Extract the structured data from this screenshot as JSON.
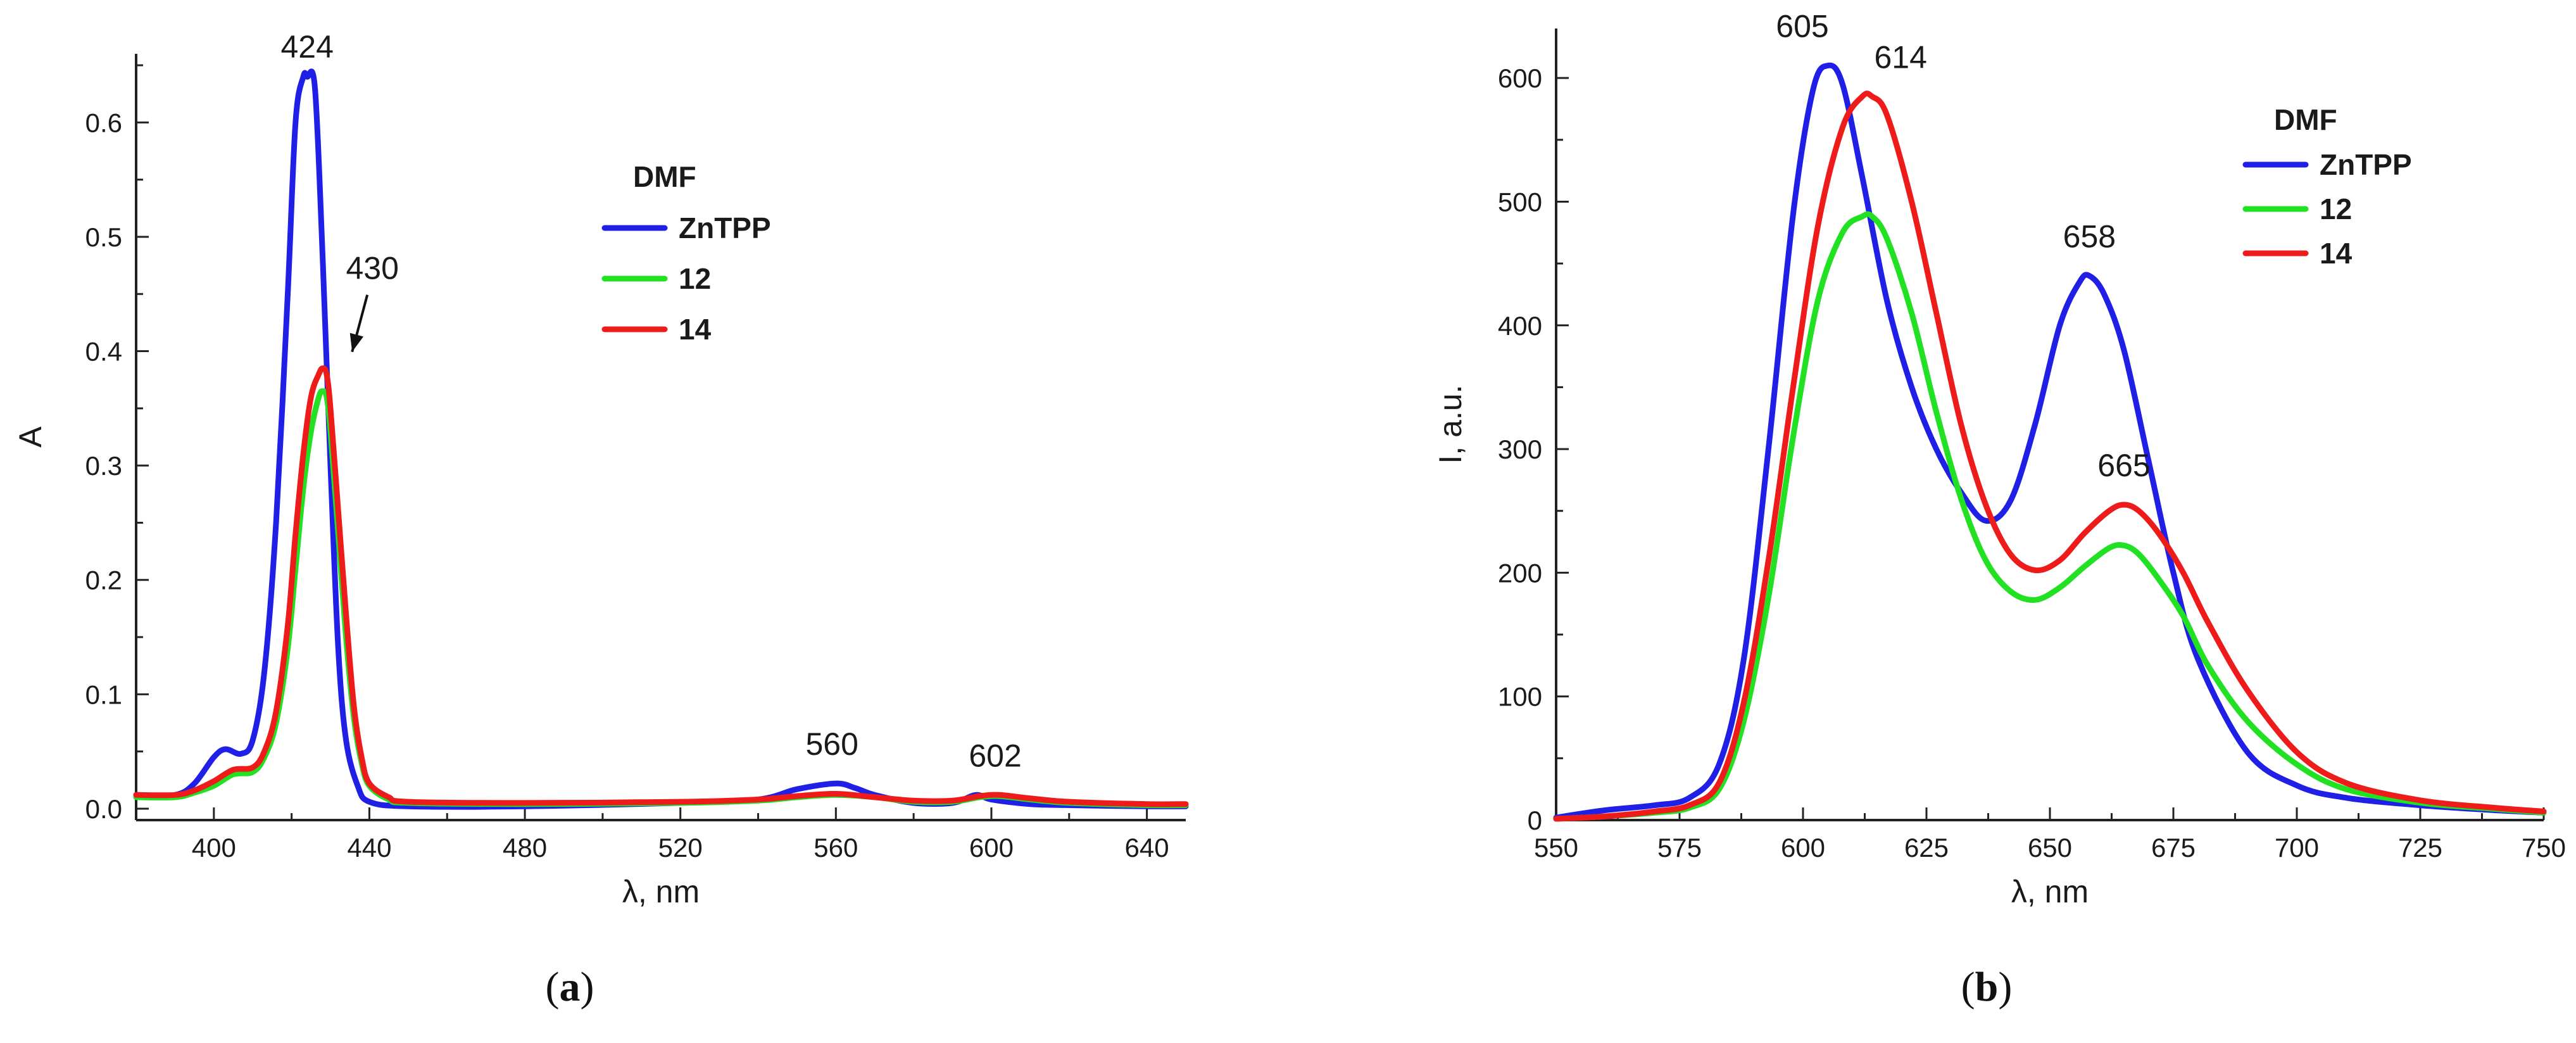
{
  "chart_data": [
    {
      "id": "a",
      "type": "line",
      "caption_paren_open": "(",
      "caption_letter": "a",
      "caption_paren_close": ")",
      "xlabel": "λ, nm",
      "ylabel": "A",
      "xlim": [
        380,
        650
      ],
      "ylim": [
        -0.01,
        0.66
      ],
      "xticks": [
        400,
        440,
        480,
        520,
        560,
        600,
        640
      ],
      "xtick_labels": [
        "400",
        "440",
        "480",
        "520",
        "560",
        "600",
        "640"
      ],
      "yticks": [
        0.0,
        0.1,
        0.2,
        0.3,
        0.4,
        0.5,
        0.6
      ],
      "ytick_labels": [
        "0.0",
        "0.1",
        "0.2",
        "0.3",
        "0.4",
        "0.5",
        "0.6"
      ],
      "legend": {
        "title": "DMF",
        "position": "center-right"
      },
      "series": [
        {
          "name": "ZnTPP",
          "color": "#1f1fe6",
          "x": [
            380,
            390,
            395,
            400,
            403,
            407,
            410,
            413,
            416,
            419,
            421,
            423,
            424,
            426,
            428,
            430,
            432,
            434,
            437,
            440,
            450,
            480,
            520,
            540,
            550,
            560,
            565,
            570,
            580,
            590,
            596,
            600,
            610,
            620,
            640,
            650
          ],
          "y": [
            0.012,
            0.012,
            0.022,
            0.045,
            0.052,
            0.048,
            0.06,
            0.12,
            0.25,
            0.45,
            0.6,
            0.64,
            0.64,
            0.63,
            0.48,
            0.3,
            0.14,
            0.06,
            0.02,
            0.006,
            0.002,
            0.002,
            0.005,
            0.008,
            0.017,
            0.022,
            0.018,
            0.012,
            0.005,
            0.005,
            0.012,
            0.008,
            0.004,
            0.003,
            0.002,
            0.002
          ]
        },
        {
          "name": "12",
          "color": "#22e022",
          "x": [
            380,
            390,
            395,
            400,
            405,
            410,
            413,
            416,
            419,
            421,
            423,
            425,
            427,
            428,
            429,
            430,
            432,
            434,
            436,
            438,
            440,
            445,
            450,
            480,
            520,
            540,
            550,
            560,
            570,
            580,
            590,
            597,
            602,
            610,
            620,
            640,
            650
          ],
          "y": [
            0.01,
            0.01,
            0.014,
            0.02,
            0.03,
            0.032,
            0.045,
            0.075,
            0.14,
            0.21,
            0.28,
            0.33,
            0.36,
            0.365,
            0.36,
            0.33,
            0.24,
            0.15,
            0.08,
            0.04,
            0.02,
            0.008,
            0.005,
            0.004,
            0.005,
            0.007,
            0.01,
            0.012,
            0.01,
            0.006,
            0.006,
            0.01,
            0.011,
            0.008,
            0.005,
            0.003,
            0.003
          ]
        },
        {
          "name": "14",
          "color": "#ee1b1b",
          "x": [
            380,
            390,
            395,
            400,
            405,
            410,
            413,
            416,
            419,
            421,
            423,
            425,
            427,
            428,
            429,
            430,
            432,
            434,
            436,
            438,
            440,
            445,
            450,
            480,
            520,
            540,
            550,
            560,
            570,
            580,
            590,
            597,
            602,
            610,
            620,
            640,
            650
          ],
          "y": [
            0.012,
            0.012,
            0.016,
            0.024,
            0.034,
            0.036,
            0.05,
            0.085,
            0.16,
            0.24,
            0.31,
            0.36,
            0.38,
            0.385,
            0.38,
            0.35,
            0.26,
            0.17,
            0.09,
            0.045,
            0.022,
            0.01,
            0.006,
            0.005,
            0.006,
            0.008,
            0.011,
            0.013,
            0.01,
            0.007,
            0.007,
            0.011,
            0.012,
            0.009,
            0.006,
            0.004,
            0.004
          ]
        }
      ],
      "annotations": [
        {
          "text": "424",
          "x": 424,
          "y": 0.64,
          "arrow": false
        },
        {
          "text": "430",
          "x": 431,
          "y": 0.38,
          "arrow": true
        },
        {
          "text": "560",
          "x": 559,
          "y": 0.022,
          "arrow": false
        },
        {
          "text": "602",
          "x": 601,
          "y": 0.012,
          "arrow": false
        }
      ]
    },
    {
      "id": "b",
      "type": "line",
      "caption_paren_open": "(",
      "caption_letter": "b",
      "caption_paren_close": ")",
      "xlabel": "λ, nm",
      "ylabel": "I, a.u.",
      "xlim": [
        550,
        750
      ],
      "ylim": [
        0,
        640
      ],
      "xticks": [
        550,
        575,
        600,
        625,
        650,
        675,
        700,
        725,
        750
      ],
      "xtick_labels": [
        "550",
        "575",
        "600",
        "625",
        "650",
        "675",
        "700",
        "725",
        "750"
      ],
      "yticks": [
        0,
        100,
        200,
        300,
        400,
        500,
        600
      ],
      "ytick_labels": [
        "0",
        "100",
        "200",
        "300",
        "400",
        "500",
        "600"
      ],
      "legend": {
        "title": "DMF",
        "position": "top-right"
      },
      "series": [
        {
          "name": "ZnTPP",
          "color": "#1f1fe6",
          "x": [
            550,
            560,
            570,
            577,
            583,
            588,
            593,
            598,
            602,
            605,
            608,
            612,
            617,
            622,
            627,
            632,
            637,
            642,
            647,
            652,
            656,
            658,
            661,
            665,
            670,
            675,
            680,
            690,
            700,
            710,
            725,
            740,
            750
          ],
          "y": [
            2,
            8,
            12,
            18,
            45,
            130,
            300,
            490,
            590,
            610,
            595,
            520,
            420,
            350,
            300,
            265,
            242,
            258,
            320,
            400,
            435,
            440,
            425,
            380,
            290,
            200,
            130,
            55,
            28,
            18,
            12,
            8,
            6
          ]
        },
        {
          "name": "12",
          "color": "#22e022",
          "x": [
            550,
            560,
            570,
            577,
            583,
            588,
            593,
            598,
            603,
            608,
            612,
            614,
            617,
            622,
            627,
            632,
            637,
            642,
            647,
            652,
            657,
            662,
            665,
            668,
            672,
            677,
            682,
            690,
            700,
            710,
            725,
            740,
            750
          ],
          "y": [
            1,
            3,
            6,
            10,
            25,
            80,
            180,
            310,
            420,
            475,
            488,
            488,
            470,
            410,
            330,
            260,
            210,
            185,
            178,
            188,
            205,
            220,
            222,
            215,
            195,
            165,
            125,
            80,
            45,
            25,
            14,
            9,
            6
          ]
        },
        {
          "name": "14",
          "color": "#ee1b1b",
          "x": [
            550,
            560,
            570,
            577,
            583,
            588,
            593,
            598,
            603,
            608,
            612,
            614,
            617,
            622,
            627,
            632,
            637,
            642,
            647,
            652,
            657,
            662,
            665,
            668,
            672,
            677,
            682,
            690,
            700,
            710,
            725,
            740,
            750
          ],
          "y": [
            1,
            3,
            7,
            12,
            30,
            95,
            210,
            350,
            480,
            560,
            585,
            585,
            570,
            500,
            410,
            320,
            255,
            215,
            202,
            210,
            232,
            250,
            255,
            250,
            232,
            200,
            160,
            105,
            55,
            30,
            16,
            10,
            7
          ]
        }
      ],
      "annotations": [
        {
          "text": "605",
          "x": 605,
          "y": 610,
          "arrow": false
        },
        {
          "text": "614",
          "x": 614,
          "y": 585,
          "arrow": false
        },
        {
          "text": "658",
          "x": 658,
          "y": 440,
          "arrow": false
        },
        {
          "text": "665",
          "x": 665,
          "y": 255,
          "arrow": false
        }
      ]
    }
  ]
}
